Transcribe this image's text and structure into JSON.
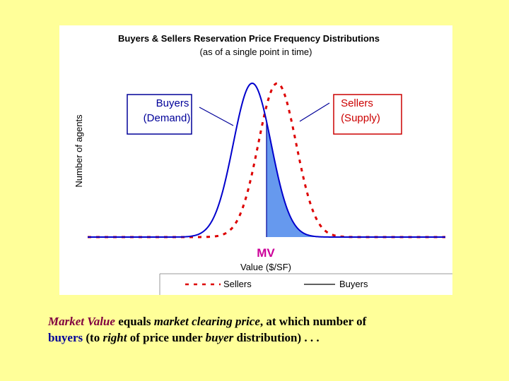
{
  "chart_data": {
    "type": "line",
    "title": "Buyers & Sellers Reservation Price Frequency Distributions",
    "subtitle": "(as of a single point in time)",
    "xlabel": "Value ($/SF)",
    "ylabel": "Number of agents",
    "xlim": [
      0,
      100
    ],
    "ylim": [
      0,
      1
    ],
    "grid": false,
    "legend_position": "bottom",
    "market_value_label": "MV",
    "market_value_x": 50,
    "series": [
      {
        "name": "Buyers",
        "style": "solid",
        "color": "#0000cc",
        "mean": 46,
        "sd": 5.3,
        "peak": 1.0
      },
      {
        "name": "Sellers",
        "style": "dashed",
        "color": "#dd0000",
        "mean": 53,
        "sd": 5.3,
        "peak": 1.0
      }
    ],
    "shaded_region": {
      "description": "Buyers to right of MV",
      "color": "#6699ee"
    },
    "annotations": [
      {
        "series": "Buyers",
        "line1": "Buyers",
        "line2": "(Demand)",
        "box_color": "#000099"
      },
      {
        "series": "Sellers",
        "line1": "Sellers",
        "line2": "(Supply)",
        "box_color": "#cc0000"
      }
    ],
    "legend": [
      {
        "label": "Sellers",
        "style": "dashed",
        "color": "#dd0000"
      },
      {
        "label": "Buyers",
        "style": "solid",
        "color": "#000000"
      }
    ]
  },
  "caption": {
    "p1": "Market Value",
    "p2": " equals ",
    "p3": "market clearing price",
    "p4": ", at which number of ",
    "p5": "buyers",
    "p6": " (to ",
    "p7": "right",
    "p8": " of price under ",
    "p9": "buyer",
    "p10": " distribution) . . ."
  }
}
